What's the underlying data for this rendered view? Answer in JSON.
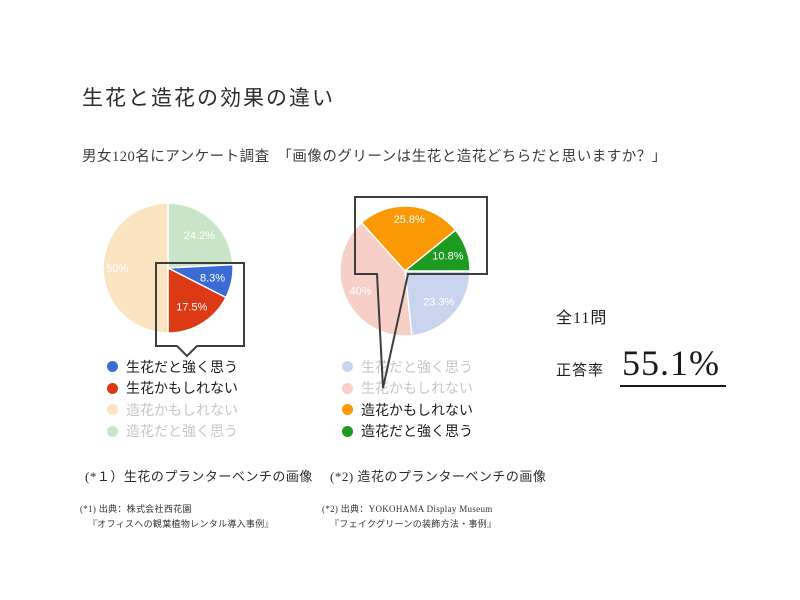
{
  "header": {
    "title": "生花と造花の効果の違い",
    "subtitle": "男女120名にアンケート調査　「画像のグリーンは生花と造花どちらだと思いますか？」"
  },
  "result": {
    "total_questions": "全11問",
    "rate_label": "正答率",
    "rate_value": "55.1%"
  },
  "footnotes": {
    "left": {
      "line1": "(*1) 出典：株式会社西花園",
      "line2": "『オフィスへの観葉植物レンタル導入事例』"
    },
    "right": {
      "line1": "(*2) 出典：YOKOHAMA Display Museum",
      "line2": "『フェイクグリーンの装飾方法・事例』"
    }
  },
  "ui_colors": {
    "callout_stroke": "#3e3e3e",
    "slice_border": "#ffffff",
    "legend_active_text": "#1c1c1c",
    "legend_faded_text": "#c6c6c6"
  },
  "chart_data": [
    {
      "type": "pie",
      "caption": "(*１）生花のプランターベンチの画像",
      "start_angle_deg": 0,
      "label_color": "#ffffff",
      "legend_position": "bottom",
      "slices": [
        {
          "label": "造花だと強く思う",
          "value": 24.2,
          "display": "24.2%",
          "color": "#c9e5c9",
          "faded": true
        },
        {
          "label": "生花だと強く思う",
          "value": 8.3,
          "display": "8.3%",
          "color": "#3b6cd3",
          "faded": false
        },
        {
          "label": "生花かもしれない",
          "value": 17.5,
          "display": "17.5%",
          "color": "#db3a15",
          "faded": false
        },
        {
          "label": "造花かもしれない",
          "value": 50,
          "display": "50%",
          "color": "#fbe4c2",
          "faded": true,
          "label_r": 0.78
        }
      ],
      "legend": [
        {
          "label": "生花だと強く思う",
          "color": "#3b6cd3",
          "text_color": "#1c1c1c"
        },
        {
          "label": "生花かもしれない",
          "color": "#db3a15",
          "text_color": "#1c1c1c"
        },
        {
          "label": "造花かもしれない",
          "color": "#fbe4c2",
          "text_color": "#c6c6c6"
        },
        {
          "label": "造花だと強く思う",
          "color": "#c9e5c9",
          "text_color": "#c6c6c6"
        }
      ]
    },
    {
      "type": "pie",
      "caption": "(*2) 造花のプランターベンチの画像",
      "start_angle_deg": 90,
      "label_color": "#ffffff",
      "legend_position": "bottom",
      "slices": [
        {
          "label": "生花だと強く思う",
          "value": 23.3,
          "display": "23.3%",
          "color": "#c9d5ee",
          "faded": true
        },
        {
          "label": "生花かもしれない",
          "value": 40,
          "display": "40%",
          "color": "#f6cfc7",
          "faded": true,
          "label_r": 0.75
        },
        {
          "label": "造花かもしれない",
          "value": 25.8,
          "display": "25.8%",
          "color": "#fb9905",
          "faded": false,
          "label_r": 0.8
        },
        {
          "label": "造花だと強く思う",
          "value": 10.8,
          "display": "10.8%",
          "color": "#1d9a20",
          "faded": false
        }
      ],
      "legend": [
        {
          "label": "生花だと強く思う",
          "color": "#c9d5ee",
          "text_color": "#c6c6c6"
        },
        {
          "label": "生花かもしれない",
          "color": "#f6cfc7",
          "text_color": "#c6c6c6"
        },
        {
          "label": "造花かもしれない",
          "color": "#fb9905",
          "text_color": "#1c1c1c"
        },
        {
          "label": "造花だと強く思う",
          "color": "#1d9a20",
          "text_color": "#1c1c1c"
        }
      ]
    }
  ]
}
